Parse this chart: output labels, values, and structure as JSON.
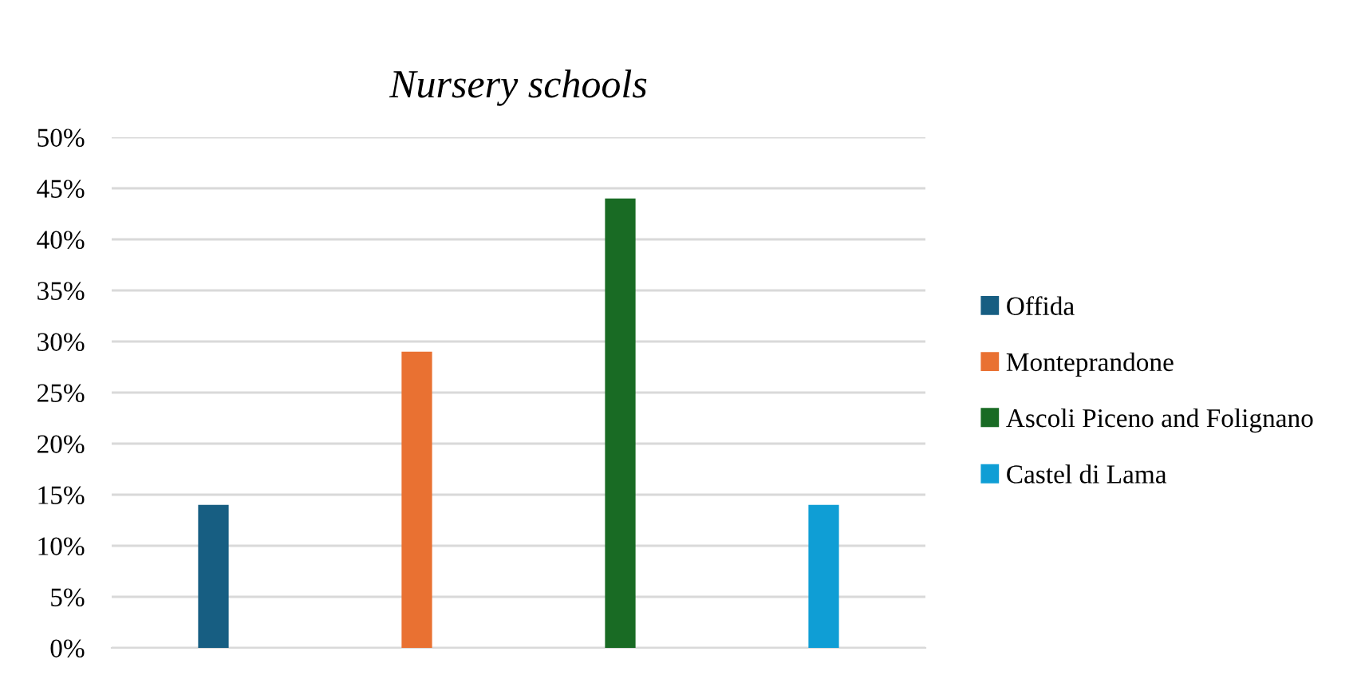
{
  "chart_data": {
    "type": "bar",
    "title": "Nursery schools",
    "categories": [
      null,
      null,
      null,
      null
    ],
    "series": [
      {
        "name": "Offida",
        "color": "#175e82",
        "values": [
          14,
          null,
          null,
          null
        ]
      },
      {
        "name": "Monteprandone",
        "color": "#e97132",
        "values": [
          null,
          29,
          null,
          null
        ]
      },
      {
        "name": "Ascoli Piceno and Folignano",
        "color": "#196b24",
        "values": [
          null,
          null,
          44,
          null
        ]
      },
      {
        "name": "Castel di Lama",
        "color": "#0f9ed5",
        "values": [
          null,
          null,
          null,
          14
        ]
      }
    ],
    "ylim": [
      0,
      50
    ],
    "yticks": [
      {
        "value": 0,
        "label": "0%"
      },
      {
        "value": 5,
        "label": "5%"
      },
      {
        "value": 10,
        "label": "10%"
      },
      {
        "value": 15,
        "label": "15%"
      },
      {
        "value": 20,
        "label": "20%"
      },
      {
        "value": 25,
        "label": "25%"
      },
      {
        "value": 30,
        "label": "30%"
      },
      {
        "value": 35,
        "label": "35%"
      },
      {
        "value": 40,
        "label": "40%"
      },
      {
        "value": 45,
        "label": "45%"
      },
      {
        "value": 50,
        "label": "50%"
      }
    ],
    "grid": "y",
    "legend": "right"
  }
}
